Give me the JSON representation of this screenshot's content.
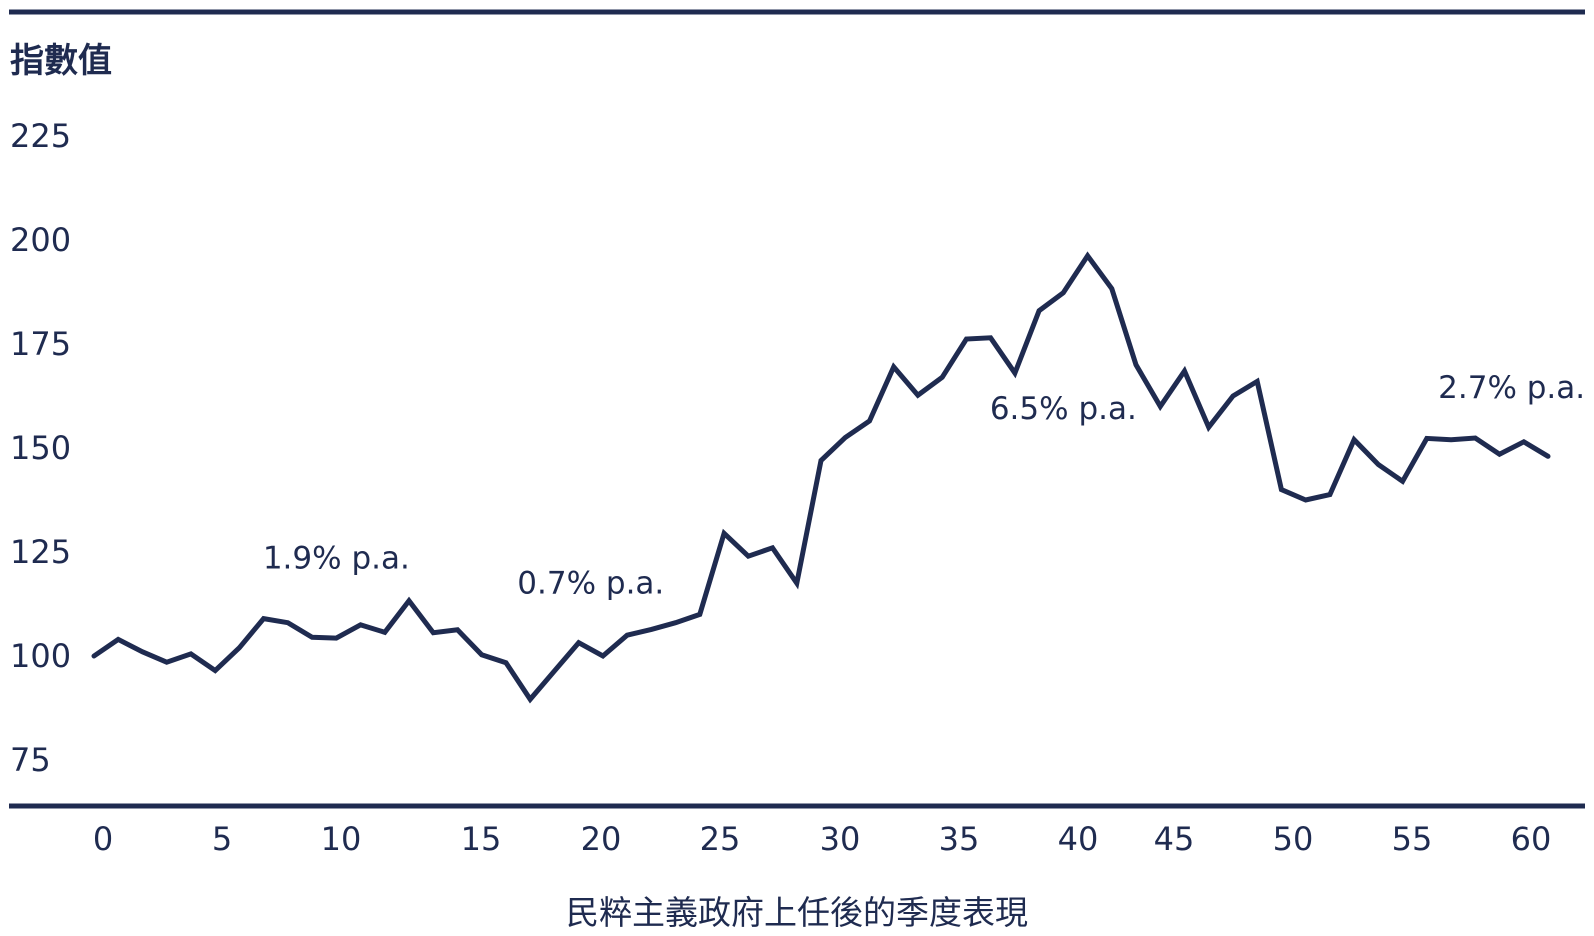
{
  "chart_data": {
    "type": "line",
    "ylabel": "指數值",
    "xlabel": "民粹主義政府上任後的季度表現",
    "xlim": [
      0,
      60
    ],
    "ylim": [
      75,
      225
    ],
    "y_ticks": [
      "225",
      "200",
      "175",
      "150",
      "125",
      "100",
      "75"
    ],
    "y_tick_values": [
      225,
      200,
      175,
      150,
      125,
      100,
      75
    ],
    "x_ticks": [
      "0",
      "5",
      "10",
      "15",
      "20",
      "25",
      "30",
      "35",
      "40",
      "45",
      "50",
      "55",
      "60"
    ],
    "x_tick_values": [
      0,
      5,
      10,
      15,
      20,
      25,
      30,
      35,
      40,
      45,
      50,
      55,
      60
    ],
    "grid": false,
    "series": [
      {
        "x": [
          0,
          1,
          2,
          3,
          4,
          5,
          6,
          7,
          8,
          9,
          10,
          11,
          12,
          13,
          14,
          15,
          16,
          17,
          18,
          19,
          20,
          21,
          22,
          23,
          24,
          25,
          26,
          27,
          28,
          29,
          30,
          31,
          32,
          33,
          34,
          35,
          36,
          37,
          38,
          39,
          40,
          41,
          42,
          43,
          44,
          45,
          46,
          47,
          48,
          49,
          50,
          51,
          52,
          53,
          54,
          55,
          56,
          57,
          58,
          59,
          60
        ],
        "values": [
          100,
          104,
          101,
          98.5,
          100.5,
          96.5,
          102,
          109,
          108,
          104.5,
          104.3,
          107.5,
          105.7,
          113.3,
          105.6,
          106.3,
          100.3,
          98.4,
          89.6,
          96.4,
          103.2,
          100,
          105,
          106.4,
          108,
          110,
          129.5,
          124,
          126,
          117.5,
          147,
          152.5,
          156.5,
          169.5,
          162.7,
          167,
          176.2,
          176.5,
          168,
          183,
          187.3,
          196.2,
          188.3,
          170,
          160,
          168.5,
          155,
          162.5,
          166,
          140,
          137.5,
          138.8,
          152,
          146,
          142,
          152.3,
          152,
          152.4,
          148.5,
          151.5,
          148
        ]
      }
    ],
    "annotations": [
      {
        "text": "1.9% p.a.",
        "x": 10,
        "y": 121
      },
      {
        "text": "0.7% p.a.",
        "x": 20.5,
        "y": 115
      },
      {
        "text": "6.5% p.a.",
        "x": 40,
        "y": 157
      },
      {
        "text": "2.7% p.a.",
        "x": 58.5,
        "y": 162
      }
    ],
    "colors": {
      "line": "#1f2b50",
      "text": "#1f2b50",
      "rule": "#1f2b50"
    }
  }
}
